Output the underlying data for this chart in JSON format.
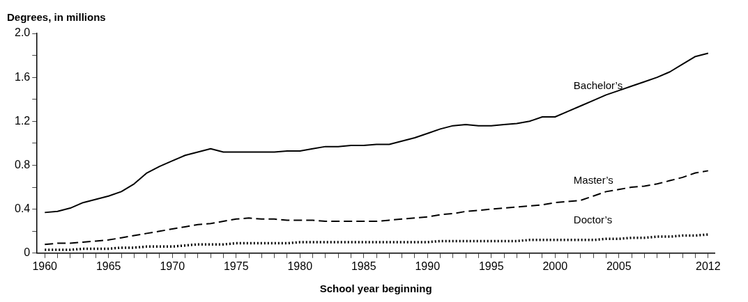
{
  "chart_data": {
    "type": "line",
    "xlabel": "School year beginning",
    "ylabel": "Degrees, in millions",
    "x": [
      1960,
      1961,
      1962,
      1963,
      1964,
      1965,
      1966,
      1967,
      1968,
      1969,
      1970,
      1971,
      1972,
      1973,
      1974,
      1975,
      1976,
      1977,
      1978,
      1979,
      1980,
      1981,
      1982,
      1983,
      1984,
      1985,
      1986,
      1987,
      1988,
      1989,
      1990,
      1991,
      1992,
      1993,
      1994,
      1995,
      1996,
      1997,
      1998,
      1999,
      2000,
      2001,
      2002,
      2003,
      2004,
      2005,
      2006,
      2007,
      2008,
      2009,
      2010,
      2011,
      2012
    ],
    "series": [
      {
        "name": "Bachelor’s",
        "color": "#000000",
        "line_style": "solid",
        "values": [
          0.37,
          0.38,
          0.41,
          0.46,
          0.49,
          0.52,
          0.56,
          0.63,
          0.73,
          0.79,
          0.84,
          0.89,
          0.92,
          0.95,
          0.92,
          0.92,
          0.92,
          0.92,
          0.92,
          0.93,
          0.93,
          0.95,
          0.97,
          0.97,
          0.98,
          0.98,
          0.99,
          0.99,
          1.02,
          1.05,
          1.09,
          1.13,
          1.16,
          1.17,
          1.16,
          1.16,
          1.17,
          1.18,
          1.2,
          1.24,
          1.24,
          1.29,
          1.34,
          1.39,
          1.44,
          1.48,
          1.52,
          1.56,
          1.6,
          1.65,
          1.72,
          1.79,
          1.82
        ]
      },
      {
        "name": "Master’s",
        "color": "#000000",
        "line_style": "dashed",
        "values": [
          0.08,
          0.09,
          0.09,
          0.1,
          0.11,
          0.12,
          0.14,
          0.16,
          0.18,
          0.2,
          0.22,
          0.24,
          0.26,
          0.27,
          0.29,
          0.31,
          0.32,
          0.31,
          0.31,
          0.3,
          0.3,
          0.3,
          0.29,
          0.29,
          0.29,
          0.29,
          0.29,
          0.3,
          0.31,
          0.32,
          0.33,
          0.35,
          0.36,
          0.38,
          0.39,
          0.4,
          0.41,
          0.42,
          0.43,
          0.44,
          0.46,
          0.47,
          0.48,
          0.52,
          0.56,
          0.58,
          0.6,
          0.61,
          0.63,
          0.66,
          0.69,
          0.73,
          0.75
        ]
      },
      {
        "name": "Doctor’s",
        "color": "#000000",
        "line_style": "dotted",
        "values": [
          0.03,
          0.03,
          0.03,
          0.04,
          0.04,
          0.04,
          0.05,
          0.05,
          0.06,
          0.06,
          0.06,
          0.07,
          0.08,
          0.08,
          0.08,
          0.09,
          0.09,
          0.09,
          0.09,
          0.09,
          0.1,
          0.1,
          0.1,
          0.1,
          0.1,
          0.1,
          0.1,
          0.1,
          0.1,
          0.1,
          0.1,
          0.11,
          0.11,
          0.11,
          0.11,
          0.11,
          0.11,
          0.11,
          0.12,
          0.12,
          0.12,
          0.12,
          0.12,
          0.12,
          0.13,
          0.13,
          0.14,
          0.14,
          0.15,
          0.15,
          0.16,
          0.16,
          0.17
        ]
      }
    ],
    "xlim": [
      1959.4,
      2012.5
    ],
    "xticks": [
      1960,
      {
        "value": 1961,
        "label": null
      },
      {
        "value": 1962,
        "label": null
      },
      {
        "value": 1963,
        "label": null
      },
      {
        "value": 1964,
        "label": null
      },
      1965,
      {
        "value": 1966,
        "label": null
      },
      {
        "value": 1967,
        "label": null
      },
      {
        "value": 1968,
        "label": null
      },
      {
        "value": 1969,
        "label": null
      },
      1970,
      {
        "value": 1971,
        "label": null
      },
      {
        "value": 1972,
        "label": null
      },
      {
        "value": 1973,
        "label": null
      },
      {
        "value": 1974,
        "label": null
      },
      1975,
      {
        "value": 1976,
        "label": null
      },
      {
        "value": 1977,
        "label": null
      },
      {
        "value": 1978,
        "label": null
      },
      {
        "value": 1979,
        "label": null
      },
      1980,
      {
        "value": 1981,
        "label": null
      },
      {
        "value": 1982,
        "label": null
      },
      {
        "value": 1983,
        "label": null
      },
      {
        "value": 1984,
        "label": null
      },
      1985,
      {
        "value": 1986,
        "label": null
      },
      {
        "value": 1987,
        "label": null
      },
      {
        "value": 1988,
        "label": null
      },
      {
        "value": 1989,
        "label": null
      },
      1990,
      {
        "value": 1991,
        "label": null
      },
      {
        "value": 1992,
        "label": null
      },
      {
        "value": 1993,
        "label": null
      },
      {
        "value": 1994,
        "label": null
      },
      1995,
      {
        "value": 1996,
        "label": null
      },
      {
        "value": 1997,
        "label": null
      },
      {
        "value": 1998,
        "label": null
      },
      {
        "value": 1999,
        "label": null
      },
      2000,
      {
        "value": 2001,
        "label": null
      },
      {
        "value": 2002,
        "label": null
      },
      {
        "value": 2003,
        "label": null
      },
      {
        "value": 2004,
        "label": null
      },
      2005,
      {
        "value": 2006,
        "label": null
      },
      {
        "value": 2007,
        "label": null
      },
      {
        "value": 2008,
        "label": null
      },
      {
        "value": 2009,
        "label": null
      },
      {
        "value": 2010,
        "label": null
      },
      {
        "value": 2011,
        "label": null
      },
      2012
    ],
    "ylim": [
      0,
      2
    ],
    "yticks": [
      0,
      {
        "value": 0.2,
        "label": null
      },
      {
        "value": 0.4,
        "label": "0.4"
      },
      {
        "value": 0.6,
        "label": null
      },
      {
        "value": 0.8,
        "label": "0.8"
      },
      {
        "value": 1,
        "label": null
      },
      {
        "value": 1.2,
        "label": "1.2"
      },
      {
        "value": 1.4,
        "label": null
      },
      {
        "value": 1.6,
        "label": "1.6"
      },
      {
        "value": 1.8,
        "label": null
      },
      {
        "value": 2,
        "label": "2.0"
      }
    ],
    "grid": false,
    "legend": false,
    "marker": "none"
  }
}
